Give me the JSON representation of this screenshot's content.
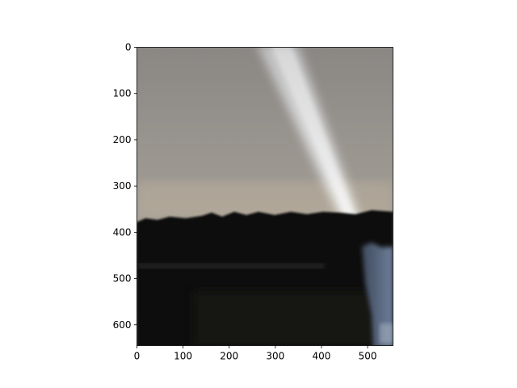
{
  "axes": {
    "x_ticks": [
      "0",
      "100",
      "200",
      "300",
      "400",
      "500"
    ],
    "y_ticks": [
      "0",
      "100",
      "200",
      "300",
      "400",
      "500",
      "600"
    ],
    "x_range": [
      0,
      555
    ],
    "y_range": [
      0,
      645
    ]
  },
  "image": {
    "subject": "night-sky-with-searchlight-beam-over-dark-treeline",
    "colors": {
      "sky_top": "#8a8784",
      "sky_horizon": "#bdb2a0",
      "treeline": "#0f0f0e",
      "beam": "#f0f3f6",
      "figure_blue": "#5a6b86"
    }
  }
}
